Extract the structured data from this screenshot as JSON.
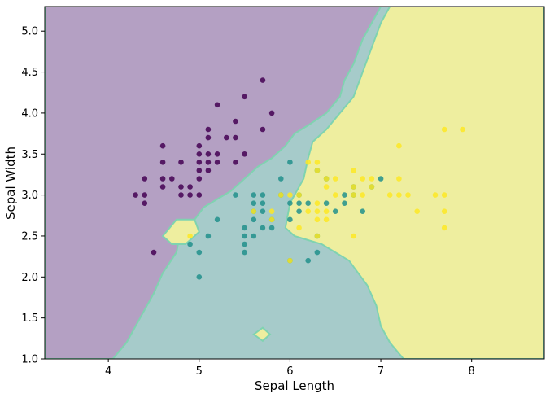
{
  "chart_data": {
    "type": "scatter",
    "title": "",
    "xlabel": "Sepal Length",
    "ylabel": "Sepal Width",
    "xlim": [
      3.3,
      8.8
    ],
    "ylim": [
      1.0,
      5.3
    ],
    "xticks": [
      "4",
      "5",
      "6",
      "7",
      "8"
    ],
    "yticks": [
      "1.0",
      "1.5",
      "2.0",
      "2.5",
      "3.0",
      "3.5",
      "4.0",
      "4.5",
      "5.0"
    ],
    "grid": false,
    "legend": "none",
    "background": "decision-region contour (3 classes)",
    "region_colors": {
      "class_0": "#b4a0c3",
      "class_1": "#a6cbca",
      "class_2": "#eeee9f"
    },
    "series": [
      {
        "color": "#440154",
        "points": [
          [
            4.3,
            3.0
          ],
          [
            4.4,
            3.0
          ],
          [
            4.4,
            2.9
          ],
          [
            4.4,
            3.2
          ],
          [
            4.5,
            2.3
          ],
          [
            4.6,
            3.1
          ],
          [
            4.6,
            3.2
          ],
          [
            4.6,
            3.4
          ],
          [
            4.6,
            3.6
          ],
          [
            4.7,
            3.2
          ],
          [
            4.8,
            3.0
          ],
          [
            4.8,
            3.1
          ],
          [
            4.8,
            3.4
          ],
          [
            4.9,
            3.0
          ],
          [
            4.9,
            3.1
          ],
          [
            5.0,
            3.0
          ],
          [
            5.0,
            3.2
          ],
          [
            5.0,
            3.3
          ],
          [
            5.0,
            3.4
          ],
          [
            5.0,
            3.5
          ],
          [
            5.0,
            3.6
          ],
          [
            5.1,
            3.3
          ],
          [
            5.1,
            3.4
          ],
          [
            5.1,
            3.5
          ],
          [
            5.1,
            3.7
          ],
          [
            5.1,
            3.8
          ],
          [
            5.2,
            3.4
          ],
          [
            5.2,
            3.5
          ],
          [
            5.2,
            4.1
          ],
          [
            5.3,
            3.7
          ],
          [
            5.4,
            3.4
          ],
          [
            5.4,
            3.7
          ],
          [
            5.4,
            3.9
          ],
          [
            5.5,
            3.5
          ],
          [
            5.5,
            4.2
          ],
          [
            5.7,
            3.8
          ],
          [
            5.7,
            4.4
          ],
          [
            5.8,
            4.0
          ]
        ]
      },
      {
        "color": "#21918c",
        "points": [
          [
            4.9,
            2.4
          ],
          [
            5.0,
            2.0
          ],
          [
            5.0,
            2.3
          ],
          [
            5.1,
            2.5
          ],
          [
            5.2,
            2.7
          ],
          [
            5.4,
            3.0
          ],
          [
            5.5,
            2.3
          ],
          [
            5.5,
            2.4
          ],
          [
            5.5,
            2.5
          ],
          [
            5.5,
            2.6
          ],
          [
            5.6,
            2.5
          ],
          [
            5.6,
            2.7
          ],
          [
            5.6,
            2.8
          ],
          [
            5.6,
            2.9
          ],
          [
            5.6,
            3.0
          ],
          [
            5.7,
            2.6
          ],
          [
            5.7,
            2.8
          ],
          [
            5.7,
            2.9
          ],
          [
            5.7,
            3.0
          ],
          [
            5.8,
            2.6
          ],
          [
            5.8,
            2.7
          ],
          [
            5.9,
            3.0
          ],
          [
            5.9,
            3.2
          ],
          [
            6.0,
            2.2
          ],
          [
            6.0,
            2.7
          ],
          [
            6.0,
            2.9
          ],
          [
            6.0,
            3.4
          ],
          [
            6.1,
            2.8
          ],
          [
            6.1,
            2.9
          ],
          [
            6.1,
            3.0
          ],
          [
            6.2,
            2.2
          ],
          [
            6.2,
            2.9
          ],
          [
            6.3,
            2.3
          ],
          [
            6.3,
            2.5
          ],
          [
            6.3,
            3.3
          ],
          [
            6.4,
            2.9
          ],
          [
            6.4,
            3.2
          ],
          [
            6.5,
            2.8
          ],
          [
            6.6,
            2.9
          ],
          [
            6.6,
            3.0
          ],
          [
            6.7,
            3.0
          ],
          [
            6.7,
            3.1
          ],
          [
            6.8,
            2.8
          ],
          [
            6.9,
            3.1
          ],
          [
            7.0,
            3.2
          ]
        ]
      },
      {
        "color": "#fde725",
        "points": [
          [
            4.9,
            2.5
          ],
          [
            5.6,
            2.8
          ],
          [
            5.8,
            2.7
          ],
          [
            5.8,
            2.8
          ],
          [
            5.9,
            3.0
          ],
          [
            6.0,
            2.2
          ],
          [
            6.0,
            3.0
          ],
          [
            6.1,
            2.6
          ],
          [
            6.1,
            3.0
          ],
          [
            6.2,
            2.8
          ],
          [
            6.2,
            3.4
          ],
          [
            6.3,
            2.5
          ],
          [
            6.3,
            2.7
          ],
          [
            6.3,
            2.8
          ],
          [
            6.3,
            2.9
          ],
          [
            6.3,
            3.3
          ],
          [
            6.3,
            3.4
          ],
          [
            6.4,
            2.7
          ],
          [
            6.4,
            2.8
          ],
          [
            6.4,
            3.1
          ],
          [
            6.4,
            3.2
          ],
          [
            6.5,
            3.0
          ],
          [
            6.5,
            3.2
          ],
          [
            6.7,
            2.5
          ],
          [
            6.7,
            3.0
          ],
          [
            6.7,
            3.1
          ],
          [
            6.7,
            3.3
          ],
          [
            6.8,
            3.0
          ],
          [
            6.8,
            3.2
          ],
          [
            6.9,
            3.1
          ],
          [
            6.9,
            3.2
          ],
          [
            7.1,
            3.0
          ],
          [
            7.2,
            3.0
          ],
          [
            7.2,
            3.2
          ],
          [
            7.2,
            3.6
          ],
          [
            7.3,
            3.0
          ],
          [
            7.4,
            2.8
          ],
          [
            7.6,
            3.0
          ],
          [
            7.7,
            2.6
          ],
          [
            7.7,
            2.8
          ],
          [
            7.7,
            3.0
          ],
          [
            7.7,
            3.8
          ],
          [
            7.9,
            3.8
          ]
        ]
      }
    ]
  }
}
